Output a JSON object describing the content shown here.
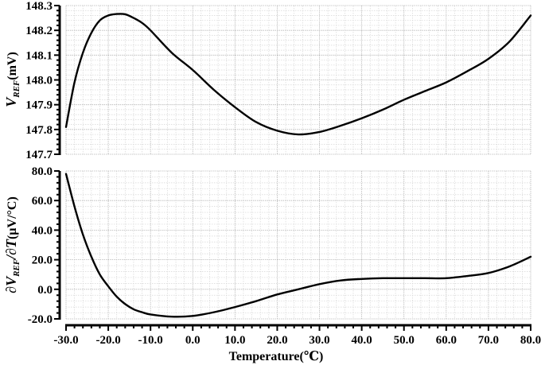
{
  "chart_data": [
    {
      "type": "line",
      "panel": "top",
      "title": "",
      "xlabel": "",
      "ylabel": "V_REF(mV)",
      "ylabel_main": "V",
      "ylabel_sub": "REF",
      "ylabel_unit": "(mV)",
      "xlim": [
        -30,
        80
      ],
      "ylim": [
        147.7,
        148.3
      ],
      "grid": true,
      "yticks": [
        "148.3",
        "148.2",
        "148.1",
        "148.0",
        "147.9",
        "147.8",
        "147.7"
      ],
      "series": [
        {
          "name": "V_REF",
          "x": [
            -30,
            -28,
            -26,
            -24,
            -22,
            -20,
            -18,
            -16,
            -14,
            -12,
            -10,
            -5,
            0,
            5,
            10,
            15,
            20,
            25,
            30,
            35,
            40,
            45,
            50,
            55,
            60,
            65,
            70,
            75,
            80
          ],
          "y": [
            147.81,
            147.99,
            148.11,
            148.19,
            148.24,
            148.26,
            148.266,
            148.265,
            148.25,
            148.23,
            148.2,
            148.11,
            148.04,
            147.96,
            147.89,
            147.83,
            147.795,
            147.78,
            147.79,
            147.815,
            147.845,
            147.88,
            147.92,
            147.955,
            147.99,
            148.035,
            148.085,
            148.155,
            148.26
          ]
        }
      ]
    },
    {
      "type": "line",
      "panel": "bottom",
      "title": "",
      "xlabel": "Temperature(℃)",
      "ylabel": "∂V_REF/∂T(µV/°C)",
      "ylabel_prefix": "∂V",
      "ylabel_sub": "REF",
      "ylabel_mid": "/∂T",
      "ylabel_unit": "(µV/°C)",
      "xlim": [
        -30,
        80
      ],
      "ylim": [
        -20,
        80
      ],
      "grid": true,
      "yticks": [
        "80.0",
        "60.0",
        "40.0",
        "20.0",
        "0.0",
        "-20.0"
      ],
      "xticks": [
        "-30.0",
        "-20.0",
        "-10.0",
        "0.0",
        "10.0",
        "20.0",
        "30.0",
        "40.0",
        "50.0",
        "60.0",
        "70.0",
        "80.0"
      ],
      "series": [
        {
          "name": "dVREF/dT",
          "x": [
            -30,
            -28,
            -26,
            -24,
            -22,
            -20,
            -18,
            -16,
            -14,
            -12,
            -10,
            -5,
            0,
            5,
            10,
            15,
            20,
            25,
            30,
            35,
            40,
            45,
            50,
            55,
            60,
            65,
            70,
            75,
            80
          ],
          "y": [
            78,
            56,
            37,
            22,
            10,
            2,
            -5,
            -10,
            -13.5,
            -15.5,
            -17,
            -18.5,
            -18,
            -15.5,
            -12,
            -8,
            -3.5,
            0,
            3.5,
            6,
            7,
            7.5,
            7.5,
            7.5,
            7.5,
            9,
            11,
            15.5,
            22
          ]
        }
      ]
    }
  ],
  "labels": {
    "x_axis_title": "Temperature(℃)",
    "top_y_main": "V",
    "top_y_sub": "REF",
    "top_y_unit": "(mV)",
    "bottom_y_prefix": "∂V",
    "bottom_y_sub": "REF",
    "bottom_y_mid": "/∂T",
    "bottom_y_unit": "(µV/°C)"
  },
  "colors": {
    "curve": "#000000",
    "grid_major": "#b8b8b8",
    "grid_minor": "#d6d6d6",
    "background": "#ffffff"
  }
}
